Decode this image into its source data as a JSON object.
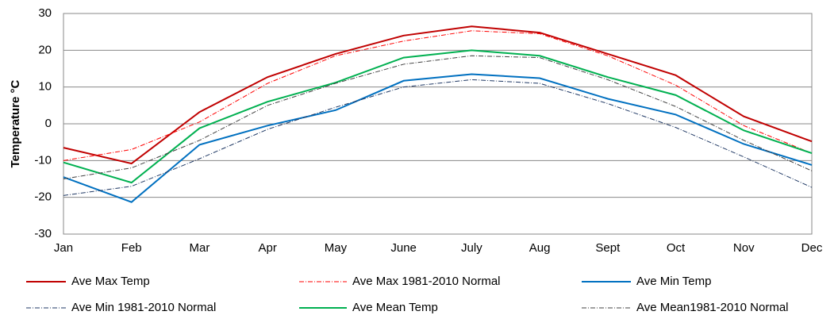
{
  "chart_data": {
    "type": "line",
    "y_label": "Temperature °C",
    "categories": [
      "Jan",
      "Feb",
      "Mar",
      "Apr",
      "May",
      "June",
      "July",
      "Aug",
      "Sept",
      "Oct",
      "Nov",
      "Dec"
    ],
    "ylim": [
      -30,
      30
    ],
    "yticks": [
      -30,
      -20,
      -10,
      0,
      10,
      20,
      30
    ],
    "grid": true,
    "legend": "bottom",
    "series": [
      {
        "name": "Ave Max Temp",
        "color": "#c00000",
        "dashed": false,
        "values": [
          -6.5,
          -10.8,
          3.2,
          12.7,
          19,
          24,
          26.5,
          24.8,
          19,
          13.2,
          2,
          -4.8
        ]
      },
      {
        "name": "Ave Max 1981-2010 Normal",
        "color": "#ff0000",
        "dashed": true,
        "values": [
          -10,
          -7,
          0.5,
          11,
          18.5,
          22.5,
          25.3,
          24.5,
          18.5,
          10.5,
          -0.5,
          -8
        ]
      },
      {
        "name": "Ave Min Temp",
        "color": "#0070c0",
        "dashed": false,
        "values": [
          -14.5,
          -21.3,
          -5.7,
          -0.5,
          3.7,
          11.7,
          13.5,
          12.4,
          6.8,
          2.5,
          -5.5,
          -11.2
        ]
      },
      {
        "name": "Ave Min 1981-2010 Normal",
        "color": "#1f3864",
        "dashed": true,
        "values": [
          -19.5,
          -17,
          -9.5,
          -1.5,
          4.5,
          10,
          12,
          11,
          5.5,
          -1,
          -9,
          -17.3
        ]
      },
      {
        "name": "Ave Mean Temp",
        "color": "#00b050",
        "dashed": false,
        "values": [
          -10.5,
          -16,
          -1.2,
          6,
          11.2,
          18,
          20,
          18.5,
          12.7,
          7.8,
          -1.8,
          -8
        ]
      },
      {
        "name": "Ave Mean1981-2010 Normal",
        "color": "#404040",
        "dashed": true,
        "values": [
          -15,
          -12,
          -4.5,
          5,
          11,
          16.2,
          18.5,
          18,
          12,
          4.7,
          -4.5,
          -12.8
        ]
      }
    ]
  }
}
